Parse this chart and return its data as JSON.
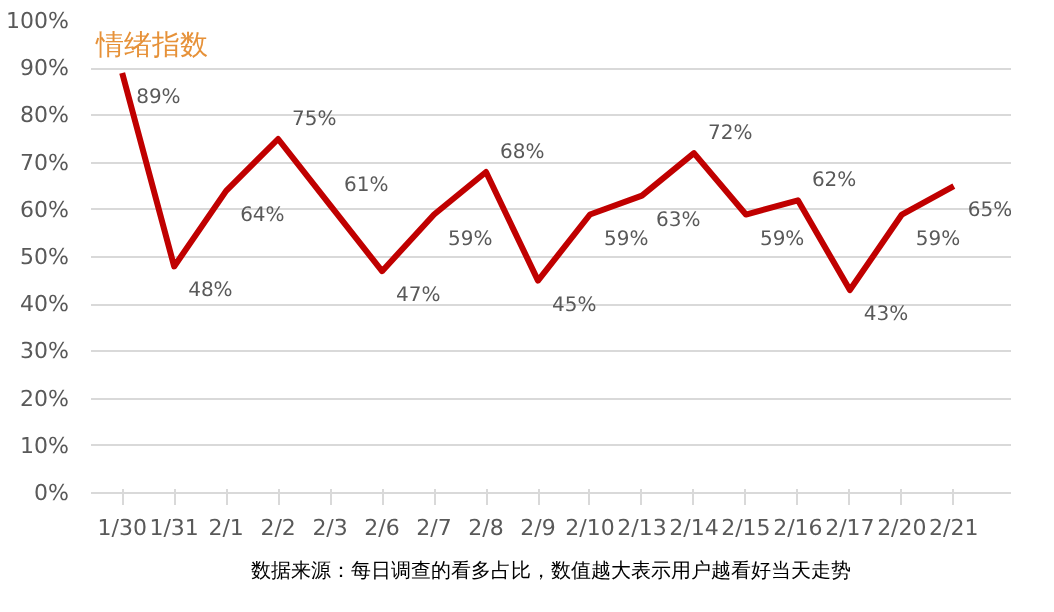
{
  "chart_data": {
    "type": "line",
    "title": "情绪指数",
    "categories": [
      "1/30",
      "1/31",
      "2/1",
      "2/2",
      "2/3",
      "2/6",
      "2/7",
      "2/8",
      "2/9",
      "2/10",
      "2/13",
      "2/14",
      "2/15",
      "2/16",
      "2/17",
      "2/20",
      "2/21"
    ],
    "series": [
      {
        "color": "#c00000",
        "values": [
          89,
          48,
          64,
          75,
          61,
          47,
          59,
          68,
          45,
          59,
          63,
          72,
          59,
          62,
          43,
          59,
          65
        ]
      }
    ],
    "value_labels": [
      "89%",
      "48%",
      "64%",
      "75%",
      "61%",
      "47%",
      "59%",
      "68%",
      "45%",
      "59%",
      "63%",
      "72%",
      "59%",
      "62%",
      "43%",
      "59%",
      "65%"
    ],
    "ylim": [
      0,
      100
    ],
    "yticks": [
      {
        "value": 0,
        "label": "0%"
      },
      {
        "value": 10,
        "label": "10%"
      },
      {
        "value": 20,
        "label": "20%"
      },
      {
        "value": 30,
        "label": "30%"
      },
      {
        "value": 40,
        "label": "40%"
      },
      {
        "value": 50,
        "label": "50%"
      },
      {
        "value": 60,
        "label": "60%"
      },
      {
        "value": 70,
        "label": "70%"
      },
      {
        "value": 80,
        "label": "80%"
      },
      {
        "value": 90,
        "label": "90%"
      },
      {
        "value": 100,
        "label": "100%"
      }
    ],
    "grid": "y",
    "marker": "none",
    "line_style": "solid",
    "annotations": [
      "数据来源：每日调查的看多占比，数值越大表示用户越看好当天走势"
    ]
  }
}
